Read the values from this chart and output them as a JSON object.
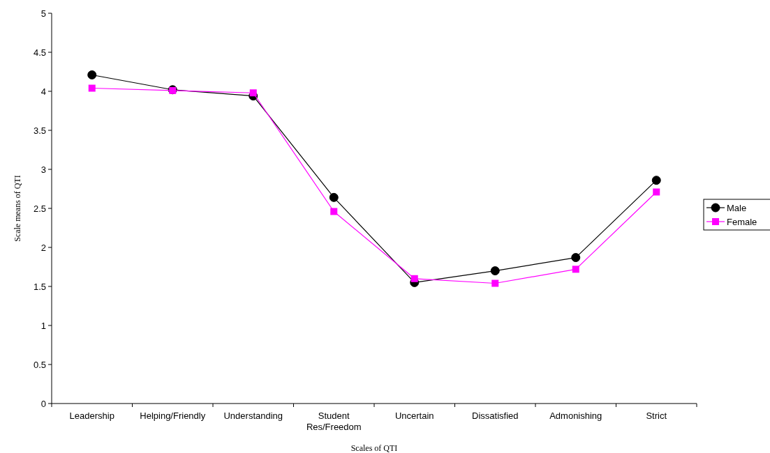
{
  "chart_data": {
    "type": "line",
    "xlabel": "Scales of QTI",
    "ylabel": "Scale means of QTI",
    "categories": [
      "Leadership",
      "Helping/Friendly",
      "Understanding",
      "Student Res/Freedom",
      "Uncertain",
      "Dissatisfied",
      "Admonishing",
      "Strict"
    ],
    "series": [
      {
        "name": "Male",
        "color": "#000000",
        "marker": "circle",
        "values": [
          4.21,
          4.02,
          3.94,
          2.64,
          1.55,
          1.7,
          1.87,
          2.86
        ]
      },
      {
        "name": "Female",
        "color": "#ff00ff",
        "marker": "square",
        "values": [
          4.04,
          4.01,
          3.98,
          2.46,
          1.6,
          1.54,
          1.72,
          2.71
        ]
      }
    ],
    "ylim": [
      0,
      5
    ],
    "yticks": [
      0,
      0.5,
      1,
      1.5,
      2,
      2.5,
      3,
      3.5,
      4,
      4.5,
      5
    ],
    "grid": false,
    "legend": "right"
  }
}
